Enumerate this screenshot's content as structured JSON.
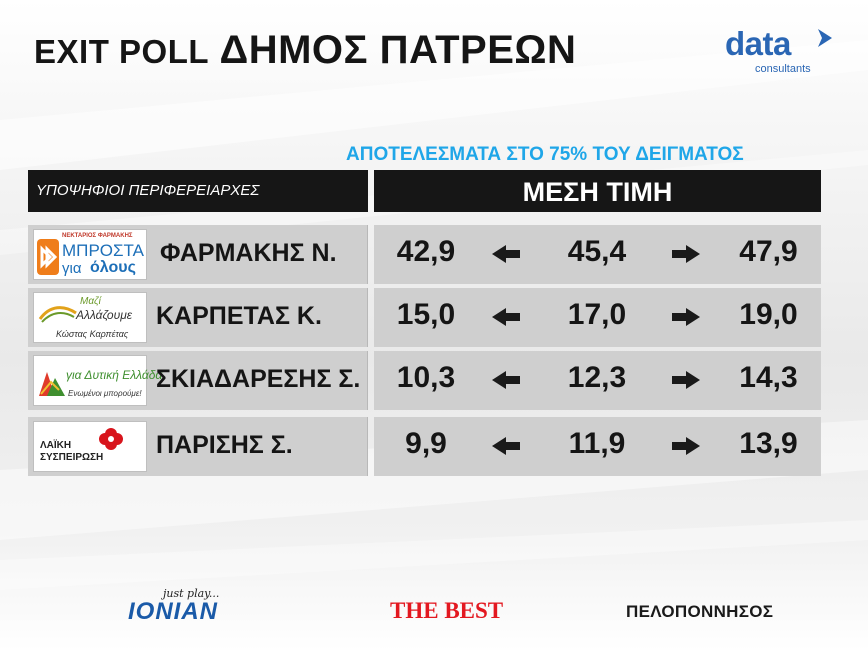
{
  "header": {
    "title_prefix": "EXIT POLL",
    "title_main": "ΔΗΜΟΣ ΠΑΤΡΕΩΝ",
    "brand_word": "data",
    "brand_sub": "consultants"
  },
  "subtitle": "ΑΠΟΤΕΛΕΣΜΑΤΑ ΣΤΟ 75% ΤΟΥ ΔΕΙΓΜΑΤΟΣ",
  "table_headers": {
    "candidates": "ΥΠΟΨΗΦΙΟΙ ΠΕΡΙΦΕΡΕΙΑΡΧΕΣ",
    "average": "ΜΕΣΗ ΤΙΜΗ"
  },
  "rows": [
    {
      "candidate": "ΦΑΡΜΑΚΗΣ Ν.",
      "low": "42,9",
      "mid": "45,4",
      "high": "47,9",
      "logo": {
        "icon": "mprosta-logo",
        "line1": "ΝΕΚΤΑΡΙΟΣ ΦΑΡΜΑΚΗΣ",
        "line2": "ΜΠΡΟΣΤΑ",
        "line3a": "για",
        "line3b": "όλους",
        "color": "#1d6fb8",
        "accent": "#ef7d1a"
      }
    },
    {
      "candidate": "ΚΑΡΠΕΤΑΣ Κ.",
      "low": "15,0",
      "mid": "17,0",
      "high": "19,0",
      "logo": {
        "icon": "mazi-allazoume-logo",
        "line1": "Μαζί",
        "line2": "Αλλάζουμε",
        "line3": "Κώστας Καρπέτας",
        "color": "#6b9a2a",
        "accent": "#e2a21a"
      }
    },
    {
      "candidate": "ΣΚΙΑΔΑΡΕΣΗΣ Σ.",
      "low": "10,3",
      "mid": "12,3",
      "high": "14,3",
      "logo": {
        "icon": "dytiki-ellada-logo",
        "line1": "για Δυτική Ελλάδα",
        "line2": "Ενωμένοι μπορούμε!",
        "color": "#3f8f2f",
        "accent": "#e03a2a"
      }
    },
    {
      "candidate": "ΠΑΡΙΣΗΣ Σ.",
      "low": "9,9",
      "mid": "11,9",
      "high": "13,9",
      "logo": {
        "icon": "laiki-syspeirosi-logo",
        "line1": "ΛΑΪΚΗ",
        "line2": "ΣΥΣΠΕΙΡΩΣΗ",
        "color": "#d8141c"
      }
    }
  ],
  "footer": {
    "ionian_tagline": "just play...",
    "ionian": "IONIAN",
    "thebest": "THE BEST",
    "pelop": "ΠΕΛΟΠΟΝΝΗΣΟΣ"
  },
  "chart_data": {
    "type": "table",
    "title": "EXIT POLL ΔΗΜΟΣ ΠΑΤΡΕΩΝ",
    "subtitle": "ΑΠΟΤΕΛΕΣΜΑΤΑ ΣΤΟ 75% ΤΟΥ ΔΕΙΓΜΑΤΟΣ",
    "columns": [
      "ΥΠΟΨΗΦΙΟΙ ΠΕΡΙΦΕΡΕΙΑΡΧΕΣ",
      "ΜΕΣΗ ΤΙΜΗ"
    ],
    "categories": [
      "ΦΑΡΜΑΚΗΣ Ν.",
      "ΚΑΡΠΕΤΑΣ Κ.",
      "ΣΚΙΑΔΑΡΕΣΗΣ Σ.",
      "ΠΑΡΙΣΗΣ Σ."
    ],
    "series": [
      {
        "values": [
          42.9,
          15.0,
          10.3,
          9.9
        ]
      },
      {
        "name": "ΜΕΣΗ ΤΙΜΗ",
        "values": [
          45.4,
          17.0,
          12.3,
          11.9
        ]
      },
      {
        "values": [
          47.9,
          19.0,
          14.3,
          13.9
        ]
      }
    ]
  },
  "colors": {
    "header_bg": "#161616",
    "row_bg": "#cfcfcf",
    "subtitle": "#1fa6e8",
    "brand": "#2a66b4"
  }
}
